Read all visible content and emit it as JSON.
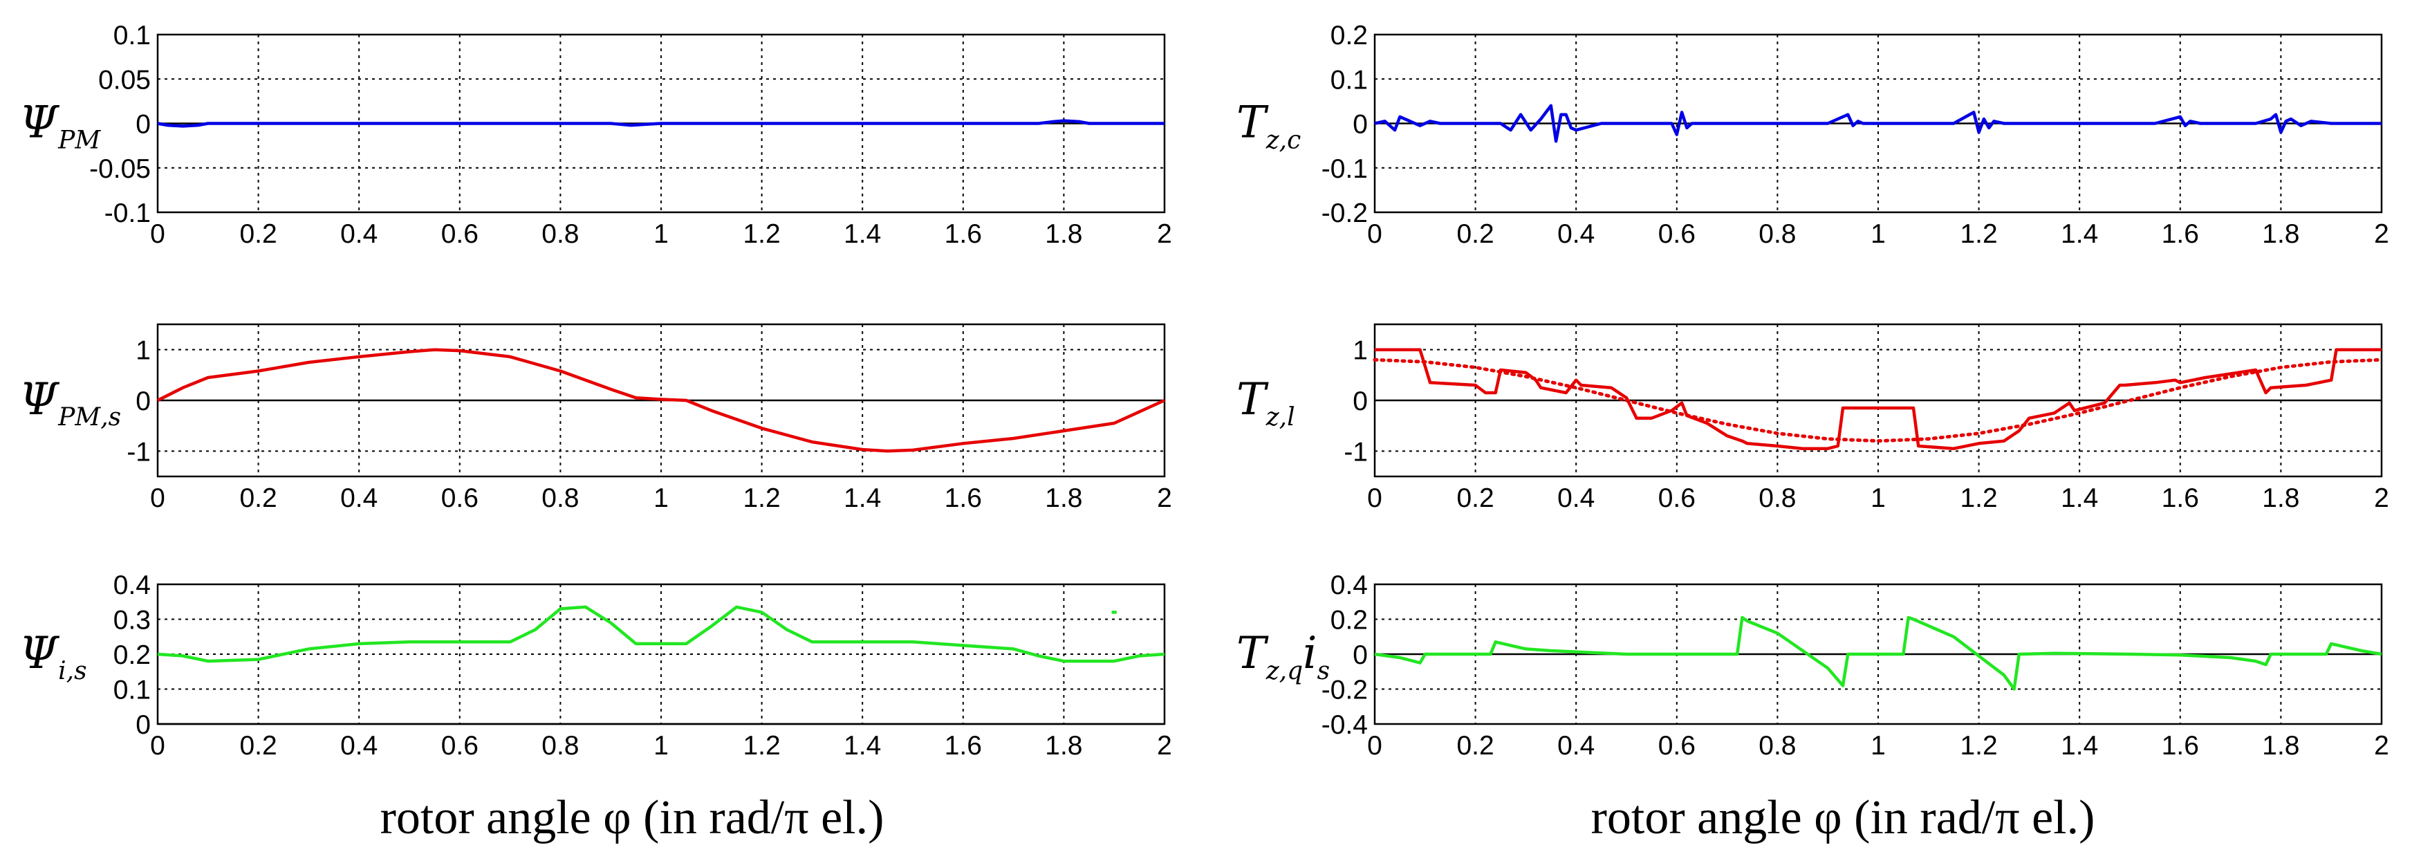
{
  "x_axis_label": "rotor angle φ (in rad/π el.)",
  "chart_data": [
    {
      "type": "line",
      "ylabel": {
        "main": "Ψ",
        "sub": "PM"
      },
      "xlim": [
        0,
        2
      ],
      "ylim": [
        -0.1,
        0.1
      ],
      "xticks": [
        "0",
        "0.2",
        "0.4",
        "0.6",
        "0.8",
        "1",
        "1.2",
        "1.4",
        "1.6",
        "1.8",
        "2"
      ],
      "yticks": [
        "-0.1",
        "-0.05",
        "0",
        "0.05",
        "0.1"
      ],
      "series": [
        {
          "name": "ΨPM",
          "color": "#0000e6",
          "style": "solid",
          "x": [
            0,
            0.02,
            0.05,
            0.08,
            0.1,
            0.2,
            0.5,
            0.9,
            0.94,
            0.97,
            1.0,
            1.3,
            1.75,
            1.78,
            1.8,
            1.83,
            1.85,
            2.0
          ],
          "y": [
            0,
            -0.002,
            -0.003,
            -0.002,
            0,
            0,
            0,
            0,
            -0.002,
            -0.001,
            0,
            0,
            0,
            0.002,
            0.003,
            0.002,
            0,
            0
          ]
        }
      ]
    },
    {
      "type": "line",
      "ylabel": {
        "main": "Ψ",
        "sub": "PM,s"
      },
      "xlim": [
        0,
        2
      ],
      "ylim": [
        -1.5,
        1.5
      ],
      "xticks": [
        "0",
        "0.2",
        "0.4",
        "0.6",
        "0.8",
        "1",
        "1.2",
        "1.4",
        "1.6",
        "1.8",
        "2"
      ],
      "yticks": [
        "-1",
        "0",
        "1"
      ],
      "series": [
        {
          "name": "ΨPM,s",
          "color": "#e60000",
          "style": "solid",
          "x": [
            0,
            0.05,
            0.1,
            0.2,
            0.3,
            0.4,
            0.5,
            0.55,
            0.6,
            0.7,
            0.8,
            0.9,
            0.95,
            1.0,
            1.05,
            1.1,
            1.2,
            1.3,
            1.4,
            1.45,
            1.5,
            1.6,
            1.7,
            1.8,
            1.9,
            2.0
          ],
          "y": [
            0,
            0.25,
            0.45,
            0.58,
            0.75,
            0.86,
            0.96,
            1.0,
            0.98,
            0.86,
            0.58,
            0.22,
            0.05,
            0.02,
            0.0,
            -0.2,
            -0.55,
            -0.82,
            -0.97,
            -1.0,
            -0.98,
            -0.85,
            -0.75,
            -0.6,
            -0.45,
            0
          ]
        }
      ]
    },
    {
      "type": "line",
      "ylabel": {
        "main": "Ψ",
        "sub": "i,s"
      },
      "xlim": [
        0,
        2
      ],
      "ylim": [
        0,
        0.4
      ],
      "xticks": [
        "0",
        "0.2",
        "0.4",
        "0.6",
        "0.8",
        "1",
        "1.2",
        "1.4",
        "1.6",
        "1.8",
        "2"
      ],
      "yticks": [
        "0",
        "0.1",
        "0.2",
        "0.3",
        "0.4"
      ],
      "series": [
        {
          "name": "Ψi,s",
          "color": "#22e622",
          "style": "solid",
          "x": [
            0,
            0.05,
            0.1,
            0.2,
            0.25,
            0.3,
            0.4,
            0.5,
            0.6,
            0.7,
            0.75,
            0.8,
            0.85,
            0.9,
            0.95,
            1.0,
            1.05,
            1.1,
            1.15,
            1.2,
            1.25,
            1.3,
            1.4,
            1.5,
            1.6,
            1.7,
            1.75,
            1.8,
            1.9,
            1.95,
            2.0
          ],
          "y": [
            0.2,
            0.195,
            0.18,
            0.185,
            0.2,
            0.215,
            0.23,
            0.235,
            0.235,
            0.235,
            0.27,
            0.33,
            0.335,
            0.29,
            0.23,
            0.23,
            0.23,
            0.28,
            0.335,
            0.32,
            0.27,
            0.235,
            0.235,
            0.235,
            0.225,
            0.215,
            0.195,
            0.18,
            0.18,
            0.195,
            0.2
          ]
        },
        {
          "name": "Ψi,s stray mark",
          "color": "#22e622",
          "style": "solid",
          "x": [
            1.895,
            1.905
          ],
          "y": [
            0.32,
            0.32
          ]
        }
      ]
    },
    {
      "type": "line",
      "ylabel": {
        "main": "T",
        "sub": "z,c"
      },
      "xlim": [
        0,
        2
      ],
      "ylim": [
        -0.2,
        0.2
      ],
      "xticks": [
        "0",
        "0.2",
        "0.4",
        "0.6",
        "0.8",
        "1",
        "1.2",
        "1.4",
        "1.6",
        "1.8",
        "2"
      ],
      "yticks": [
        "-0.2",
        "-0.1",
        "0",
        "0.1",
        "0.2"
      ],
      "series": [
        {
          "name": "Tz,c",
          "color": "#0000e6",
          "style": "solid",
          "x": [
            0,
            0.02,
            0.04,
            0.05,
            0.07,
            0.09,
            0.11,
            0.13,
            0.15,
            0.2,
            0.25,
            0.27,
            0.29,
            0.31,
            0.33,
            0.35,
            0.36,
            0.37,
            0.38,
            0.39,
            0.4,
            0.45,
            0.5,
            0.55,
            0.59,
            0.6,
            0.61,
            0.62,
            0.63,
            0.64,
            0.66,
            0.7,
            0.75,
            0.8,
            0.85,
            0.9,
            0.94,
            0.95,
            0.96,
            0.97,
            0.99,
            1.0,
            1.05,
            1.1,
            1.15,
            1.19,
            1.2,
            1.21,
            1.22,
            1.23,
            1.25,
            1.3,
            1.35,
            1.4,
            1.45,
            1.5,
            1.55,
            1.6,
            1.61,
            1.62,
            1.64,
            1.7,
            1.75,
            1.78,
            1.79,
            1.8,
            1.81,
            1.82,
            1.84,
            1.86,
            1.9,
            1.95,
            2.0
          ],
          "y": [
            0,
            0.005,
            -0.015,
            0.015,
            0.005,
            -0.005,
            0.005,
            0,
            0,
            0,
            0,
            -0.015,
            0.02,
            -0.015,
            0.01,
            0.04,
            -0.04,
            0.02,
            0.02,
            -0.01,
            -0.015,
            0,
            0,
            0,
            0,
            -0.025,
            0.025,
            -0.01,
            0,
            0,
            0,
            0,
            0,
            0,
            0,
            0,
            0.02,
            -0.005,
            0.005,
            0,
            0,
            0,
            0,
            0,
            0,
            0.025,
            -0.02,
            0.01,
            -0.01,
            0.005,
            0,
            0,
            0,
            0,
            0,
            0,
            0,
            0.015,
            -0.005,
            0.005,
            0,
            0,
            0,
            0.01,
            0.02,
            -0.02,
            0.005,
            0.01,
            -0.005,
            0.005,
            0,
            0,
            0
          ]
        }
      ]
    },
    {
      "type": "line",
      "ylabel": {
        "main": "T",
        "sub": "z,l"
      },
      "xlim": [
        0,
        2
      ],
      "ylim": [
        -1.5,
        1.5
      ],
      "xticks": [
        "0",
        "0.2",
        "0.4",
        "0.6",
        "0.8",
        "1",
        "1.2",
        "1.4",
        "1.6",
        "1.8",
        "2"
      ],
      "yticks": [
        "-1",
        "0",
        "1"
      ],
      "series": [
        {
          "name": "Tz,l",
          "color": "#e60000",
          "style": "solid",
          "x": [
            0,
            0.09,
            0.11,
            0.2,
            0.22,
            0.24,
            0.25,
            0.3,
            0.32,
            0.33,
            0.38,
            0.4,
            0.41,
            0.47,
            0.5,
            0.52,
            0.55,
            0.59,
            0.61,
            0.62,
            0.66,
            0.7,
            0.73,
            0.74,
            0.8,
            0.85,
            0.9,
            0.92,
            0.93,
            1.07,
            1.08,
            1.15,
            1.2,
            1.25,
            1.28,
            1.3,
            1.35,
            1.38,
            1.39,
            1.45,
            1.48,
            1.49,
            1.55,
            1.59,
            1.6,
            1.65,
            1.75,
            1.77,
            1.78,
            1.85,
            1.9,
            1.91,
            2.0
          ],
          "y": [
            1.0,
            1.0,
            0.35,
            0.3,
            0.15,
            0.15,
            0.6,
            0.55,
            0.4,
            0.25,
            0.15,
            0.4,
            0.3,
            0.25,
            0.05,
            -0.35,
            -0.35,
            -0.2,
            -0.05,
            -0.3,
            -0.45,
            -0.7,
            -0.8,
            -0.85,
            -0.9,
            -0.95,
            -0.95,
            -0.9,
            -0.15,
            -0.15,
            -0.9,
            -0.95,
            -0.85,
            -0.8,
            -0.6,
            -0.35,
            -0.25,
            -0.05,
            -0.2,
            -0.05,
            0.3,
            0.3,
            0.35,
            0.4,
            0.35,
            0.45,
            0.6,
            0.15,
            0.25,
            0.3,
            0.4,
            1.0,
            1.0
          ]
        },
        {
          "name": "Tz,l mean",
          "color": "#e60000",
          "style": "dotted",
          "x": [
            0,
            0.1,
            0.2,
            0.3,
            0.4,
            0.5,
            0.6,
            0.7,
            0.8,
            0.9,
            1.0,
            1.1,
            1.2,
            1.3,
            1.4,
            1.5,
            1.6,
            1.7,
            1.8,
            1.9,
            2.0
          ],
          "y": [
            0.8,
            0.76,
            0.65,
            0.47,
            0.25,
            0.0,
            -0.25,
            -0.47,
            -0.65,
            -0.76,
            -0.8,
            -0.76,
            -0.65,
            -0.47,
            -0.25,
            0.0,
            0.25,
            0.47,
            0.65,
            0.76,
            0.8
          ]
        }
      ]
    },
    {
      "type": "line",
      "ylabel": {
        "main": "T",
        "sub": "z,q",
        "tail_main": "i",
        "tail_sub": "s"
      },
      "xlim": [
        0,
        2
      ],
      "ylim": [
        -0.4,
        0.4
      ],
      "xticks": [
        "0",
        "0.2",
        "0.4",
        "0.6",
        "0.8",
        "1",
        "1.2",
        "1.4",
        "1.6",
        "1.8",
        "2"
      ],
      "yticks": [
        "-0.4",
        "-0.2",
        "0",
        "0.2",
        "0.4"
      ],
      "series": [
        {
          "name": "Tz,q is",
          "color": "#22e622",
          "style": "solid",
          "x": [
            0,
            0.05,
            0.09,
            0.1,
            0.11,
            0.2,
            0.23,
            0.24,
            0.27,
            0.3,
            0.35,
            0.5,
            0.72,
            0.73,
            0.74,
            0.8,
            0.9,
            0.93,
            0.94,
            1.05,
            1.06,
            1.07,
            1.15,
            1.25,
            1.27,
            1.28,
            1.35,
            1.5,
            1.6,
            1.7,
            1.75,
            1.77,
            1.78,
            1.85,
            1.88,
            1.89,
            1.9,
            1.93,
            1.96,
            2.0
          ],
          "y": [
            0,
            -0.02,
            -0.05,
            0,
            0,
            0,
            0,
            0.07,
            0.05,
            0.03,
            0.02,
            0,
            0,
            0.21,
            0.19,
            0.12,
            -0.08,
            -0.18,
            0,
            0,
            0.21,
            0.2,
            0.1,
            -0.12,
            -0.2,
            0,
            0.005,
            0,
            -0.005,
            -0.02,
            -0.04,
            -0.06,
            0,
            0,
            0,
            0,
            0.06,
            0.04,
            0.02,
            0
          ]
        }
      ]
    }
  ]
}
